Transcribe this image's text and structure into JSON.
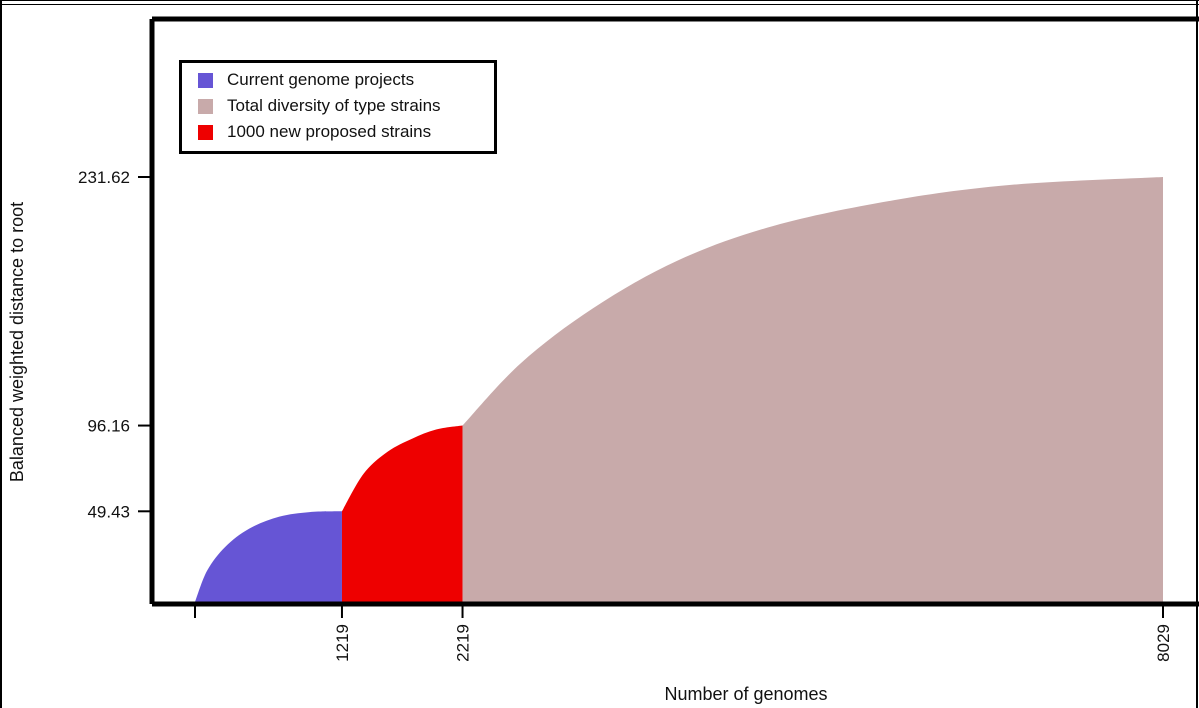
{
  "chart_data": {
    "type": "area",
    "title": "",
    "xlabel": "Number of genomes",
    "ylabel": "Balanced weighted distance to root",
    "xlim": [
      0,
      8029
    ],
    "ylim": [
      0,
      231.62
    ],
    "x_ticks": [
      1219,
      2219,
      8029
    ],
    "x_tick_labels": [
      "1219",
      "2219",
      "8029"
    ],
    "y_ticks": [
      49.43,
      96.16,
      231.62
    ],
    "y_tick_labels": [
      "49.43",
      "96.16",
      "231.62"
    ],
    "grid": false,
    "legend_position": "top-left",
    "series": [
      {
        "name": "Current genome projects",
        "color": "#6655d5",
        "x_range": [
          0,
          1219
        ],
        "points": [
          [
            0,
            0
          ],
          [
            100,
            17
          ],
          [
            250,
            30
          ],
          [
            450,
            40
          ],
          [
            700,
            46.5
          ],
          [
            950,
            49
          ],
          [
            1219,
            49.43
          ]
        ]
      },
      {
        "name": "1000 new proposed strains",
        "color": "#ee0000",
        "x_range": [
          1219,
          2219
        ],
        "points": [
          [
            1219,
            49.43
          ],
          [
            1400,
            70
          ],
          [
            1600,
            82
          ],
          [
            1800,
            89
          ],
          [
            2000,
            94
          ],
          [
            2219,
            96.16
          ]
        ]
      },
      {
        "name": "Total diversity of type strains",
        "color": "#c8aaaa",
        "x_range": [
          2219,
          8029
        ],
        "points": [
          [
            2219,
            96.16
          ],
          [
            2700,
            130
          ],
          [
            3300,
            160
          ],
          [
            4000,
            186
          ],
          [
            4800,
            205
          ],
          [
            5800,
            219
          ],
          [
            6800,
            227.5
          ],
          [
            8029,
            231.62
          ]
        ]
      }
    ],
    "legend": [
      {
        "name": "Current genome projects",
        "color": "#6655d5"
      },
      {
        "name": "Total diversity of type strains",
        "color": "#c8aaaa"
      },
      {
        "name": "1000 new proposed strains",
        "color": "#ee0000"
      }
    ]
  }
}
